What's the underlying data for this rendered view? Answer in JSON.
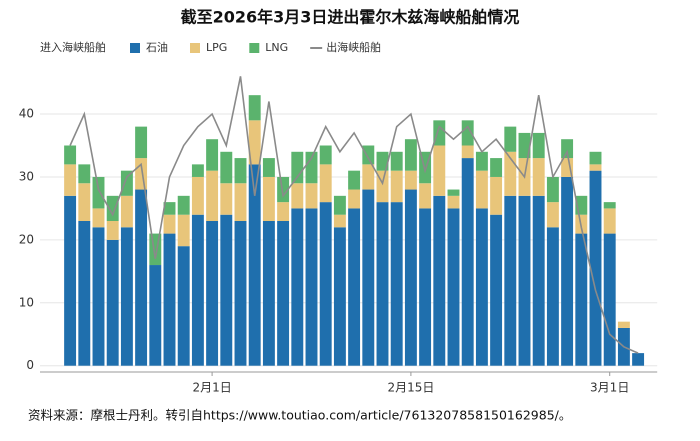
{
  "chart_data": {
    "type": "stacked_bar_line",
    "title": "截至2026年3月3日进出霍尔木兹海峡船舶情况",
    "legend_title": "进入海峡船舶",
    "categories": [
      null,
      null,
      null,
      null,
      null,
      null,
      null,
      null,
      null,
      null,
      "2月1日",
      null,
      null,
      null,
      null,
      null,
      null,
      null,
      null,
      null,
      null,
      null,
      null,
      null,
      "2月15日",
      null,
      null,
      null,
      null,
      null,
      null,
      null,
      null,
      null,
      null,
      null,
      null,
      null,
      "3月1日",
      null,
      null
    ],
    "series": [
      {
        "name": "石油",
        "color": "#1f6fad",
        "values": [
          27,
          23,
          22,
          20,
          22,
          28,
          16,
          21,
          19,
          24,
          23,
          24,
          23,
          32,
          23,
          23,
          25,
          25,
          26,
          22,
          25,
          28,
          26,
          26,
          28,
          25,
          27,
          25,
          33,
          25,
          24,
          27,
          27,
          27,
          22,
          30,
          21,
          31,
          21,
          6,
          2
        ]
      },
      {
        "name": "LPG",
        "color": "#e8c57a",
        "values": [
          5,
          6,
          3,
          3,
          5,
          5,
          0,
          3,
          5,
          6,
          8,
          5,
          6,
          7,
          7,
          3,
          4,
          4,
          6,
          2,
          3,
          4,
          5,
          5,
          3,
          4,
          8,
          2,
          2,
          6,
          6,
          7,
          6,
          6,
          4,
          3,
          3,
          1,
          4,
          1,
          0
        ]
      },
      {
        "name": "LNG",
        "color": "#5bb36d",
        "values": [
          3,
          3,
          5,
          4,
          4,
          5,
          5,
          2,
          3,
          2,
          5,
          5,
          4,
          4,
          3,
          4,
          5,
          5,
          3,
          3,
          3,
          3,
          3,
          3,
          5,
          5,
          4,
          1,
          4,
          3,
          3,
          4,
          4,
          4,
          4,
          3,
          3,
          2,
          1,
          0,
          0
        ]
      },
      {
        "name": "出海峡船舶",
        "color": "#8a8a8a",
        "type": "line",
        "values": [
          35,
          40,
          28,
          24,
          30,
          32,
          17,
          30,
          35,
          38,
          40,
          35,
          46,
          27,
          42,
          27,
          30,
          33,
          38,
          34,
          37,
          33,
          29,
          38,
          40,
          31,
          38,
          36,
          38,
          34,
          36,
          33,
          30,
          43,
          30,
          34,
          22,
          12,
          5,
          3,
          2
        ]
      }
    ],
    "ylim": [
      -1,
      47
    ],
    "yticks": [
      0,
      10,
      20,
      30,
      40
    ],
    "grid": true,
    "source": "资料来源：摩根士丹利。转引自https://www.toutiao.com/article/7613207858150162985/。"
  }
}
